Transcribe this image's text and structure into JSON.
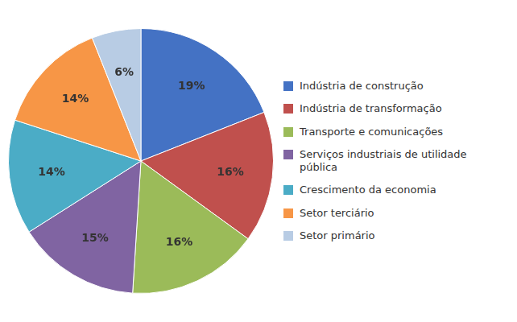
{
  "chart_data": {
    "type": "pie",
    "categories": [
      "Indústria de construção",
      "Indústria de transformação",
      "Transporte e comunicações",
      "Serviços industriais de utilidade\npública",
      "Crescimento da economia",
      "Setor terciário",
      "Setor primário"
    ],
    "values": [
      19,
      16,
      16,
      15,
      14,
      14,
      6
    ],
    "value_labels": [
      "19%",
      "16%",
      "16%",
      "15%",
      "14%",
      "14%",
      "6%"
    ],
    "colors": [
      "#4472C4",
      "#C0504D",
      "#9BBB59",
      "#8064A2",
      "#4BACC6",
      "#F79646",
      "#B8CCE4"
    ],
    "data_labels": true,
    "legend": "right"
  }
}
